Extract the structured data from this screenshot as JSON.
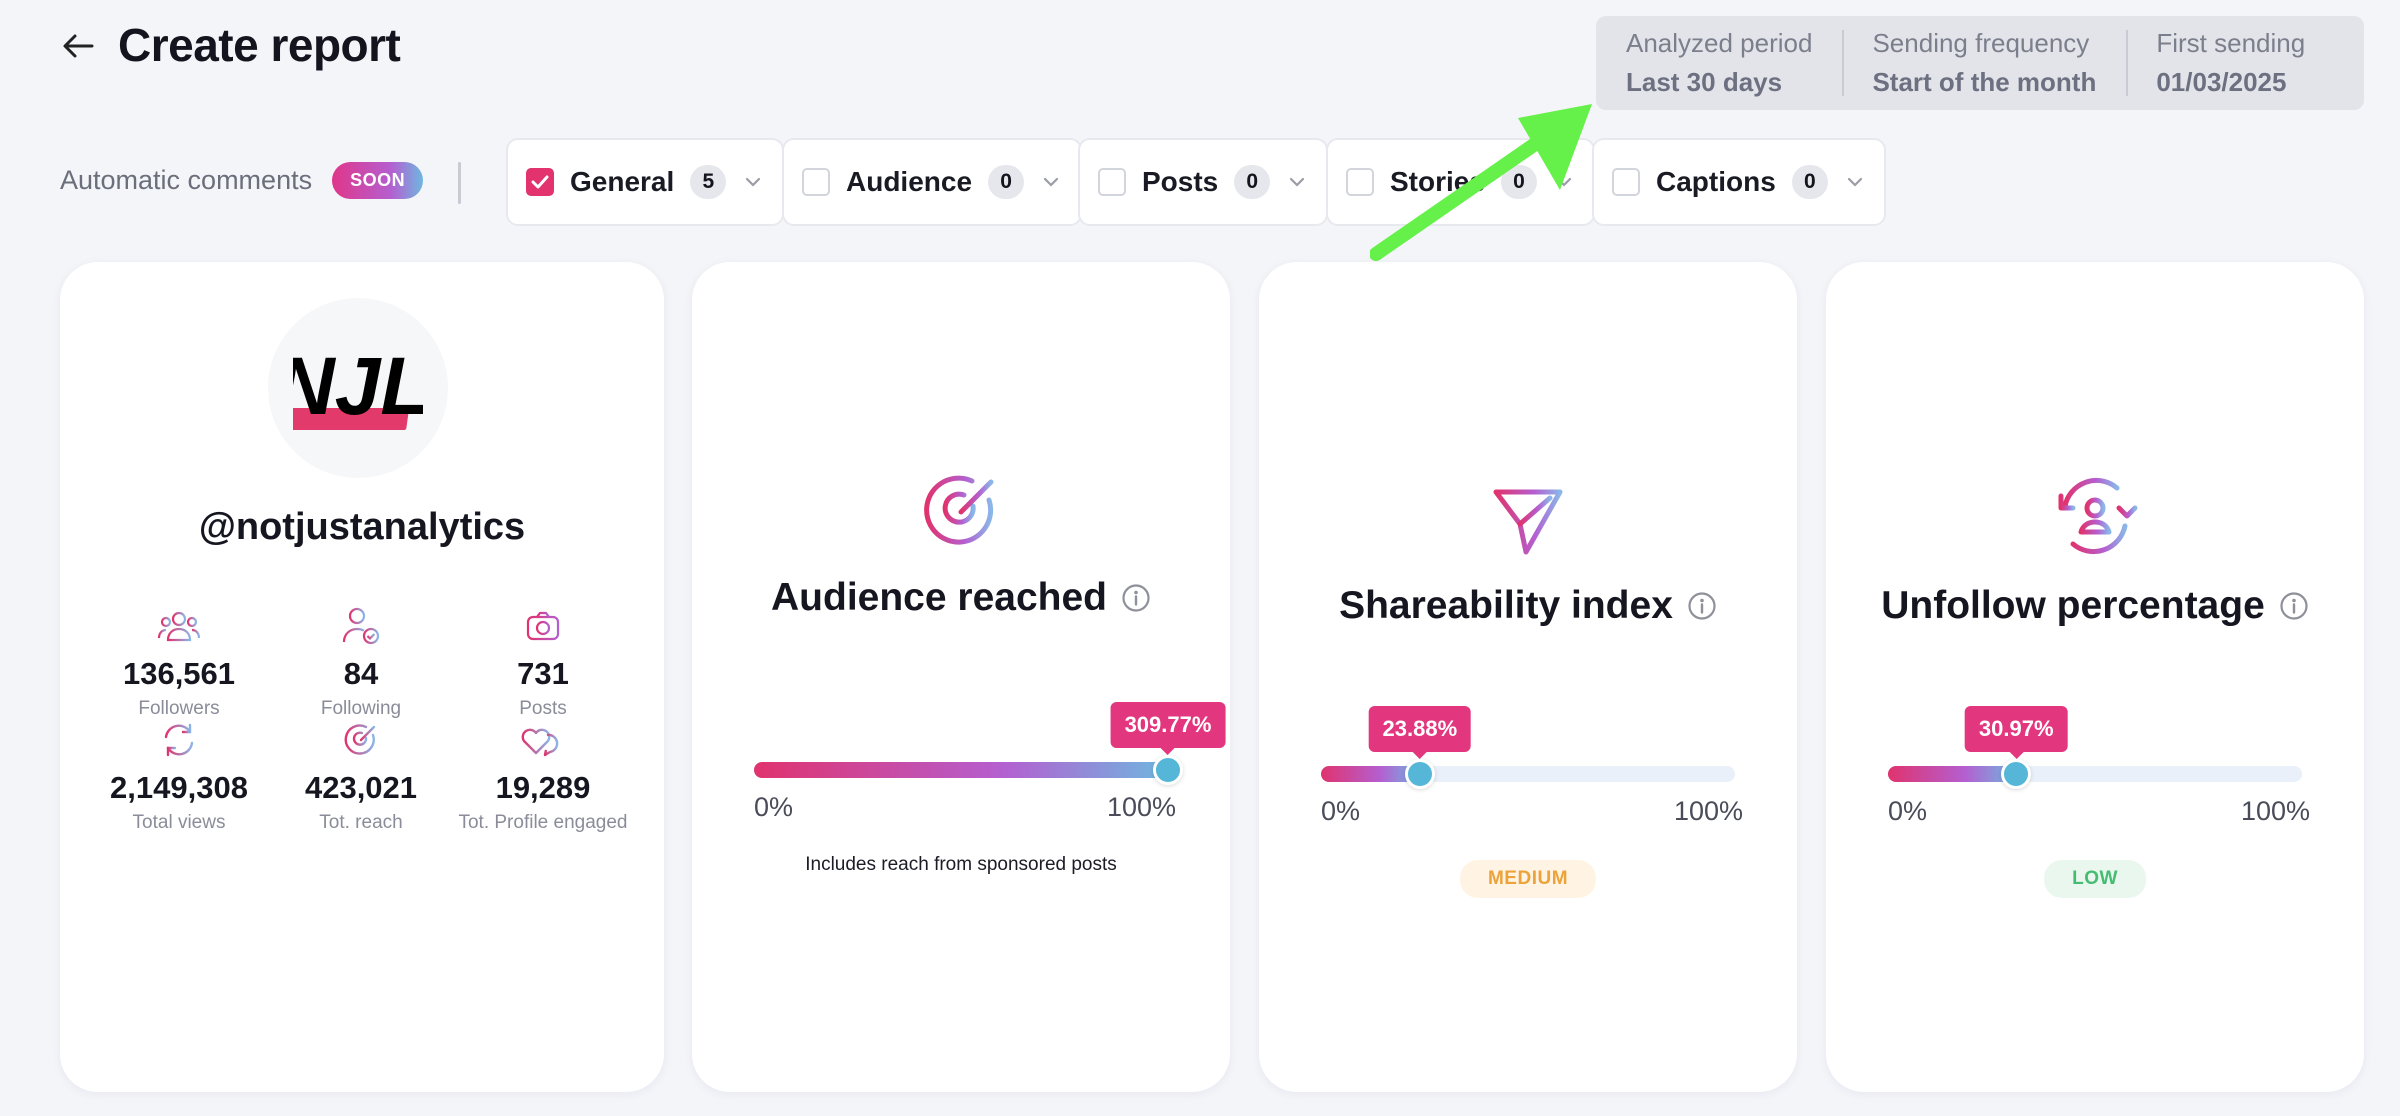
{
  "header": {
    "title": "Create report"
  },
  "summary": [
    {
      "label": "Analyzed period",
      "value": "Last 30 days"
    },
    {
      "label": "Sending frequency",
      "value": "Start of the month"
    },
    {
      "label": "First sending",
      "value": "01/03/2025"
    }
  ],
  "auto_comments": {
    "label": "Automatic comments",
    "badge": "SOON"
  },
  "filters": [
    {
      "label": "General",
      "count": "5",
      "checked": true
    },
    {
      "label": "Audience",
      "count": "0",
      "checked": false
    },
    {
      "label": "Posts",
      "count": "0",
      "checked": false
    },
    {
      "label": "Stories",
      "count": "0",
      "checked": false
    },
    {
      "label": "Captions",
      "count": "0",
      "checked": false
    }
  ],
  "profile": {
    "logo_text": "NJL",
    "handle": "@notjustanalytics",
    "stats": [
      {
        "value": "136,561",
        "label": "Followers",
        "icon": "users-icon"
      },
      {
        "value": "84",
        "label": "Following",
        "icon": "user-check-icon"
      },
      {
        "value": "731",
        "label": "Posts",
        "icon": "camera-icon"
      },
      {
        "value": "2,149,308",
        "label": "Total views",
        "icon": "refresh-icon"
      },
      {
        "value": "423,021",
        "label": "Tot. reach",
        "icon": "target-icon"
      },
      {
        "value": "19,289",
        "label": "Tot. Profile engaged",
        "icon": "hearts-icon"
      }
    ]
  },
  "metrics": {
    "audience_reached": {
      "title": "Audience reached",
      "value_label": "309.77%",
      "fill_fraction": 1.0,
      "min_label": "0%",
      "max_label": "100%",
      "note": "Includes reach from sponsored posts"
    },
    "shareability": {
      "title": "Shareability index",
      "value_label": "23.88%",
      "fill_fraction": 0.2388,
      "min_label": "0%",
      "max_label": "100%",
      "level": "MEDIUM"
    },
    "unfollow": {
      "title": "Unfollow percentage",
      "value_label": "30.97%",
      "fill_fraction": 0.3097,
      "min_label": "0%",
      "max_label": "100%",
      "level": "LOW"
    }
  },
  "colors": {
    "accent_pink": "#e2336e",
    "tooltip_pink": "#e2377f",
    "thumb_blue": "#55b6d8",
    "annotation_green": "#66f04a"
  }
}
